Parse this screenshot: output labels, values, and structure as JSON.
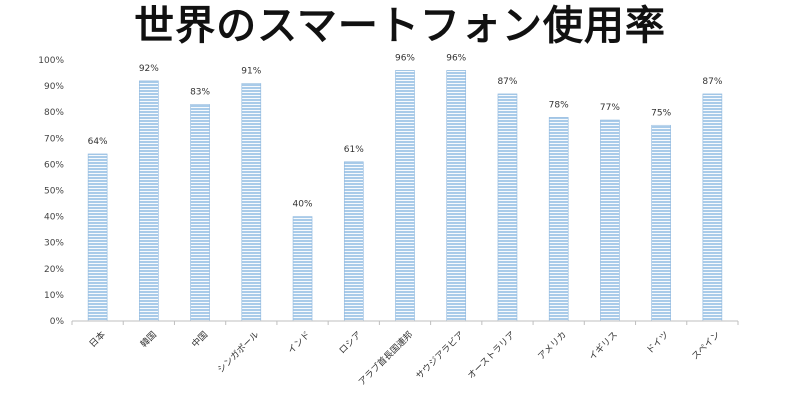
{
  "title": "世界のスマートフォン使用率",
  "colors": {
    "bar_fill": "#a9cbe9",
    "bar_stripe": "#ffffff",
    "axis": "#bfbfbf"
  },
  "chart_data": {
    "type": "bar",
    "title": "世界のスマートフォン使用率",
    "categories": [
      "日本",
      "韓国",
      "中国",
      "シンガポール",
      "インド",
      "ロシア",
      "アラブ首長国連邦",
      "サウジアラビア",
      "オーストラリア",
      "アメリカ",
      "イギリス",
      "ドイツ",
      "スペイン"
    ],
    "values": [
      64,
      92,
      83,
      91,
      40,
      61,
      96,
      96,
      87,
      78,
      77,
      75,
      87
    ],
    "data_labels": [
      "64%",
      "92%",
      "83%",
      "91%",
      "40%",
      "61%",
      "96%",
      "96%",
      "87%",
      "78%",
      "77%",
      "75%",
      "87%"
    ],
    "yticks": [
      "0%",
      "10%",
      "20%",
      "30%",
      "40%",
      "50%",
      "60%",
      "70%",
      "80%",
      "90%",
      "100%"
    ],
    "ylim": [
      0,
      100
    ],
    "xlabel": "",
    "ylabel": "",
    "grid": false,
    "legend": "none"
  }
}
